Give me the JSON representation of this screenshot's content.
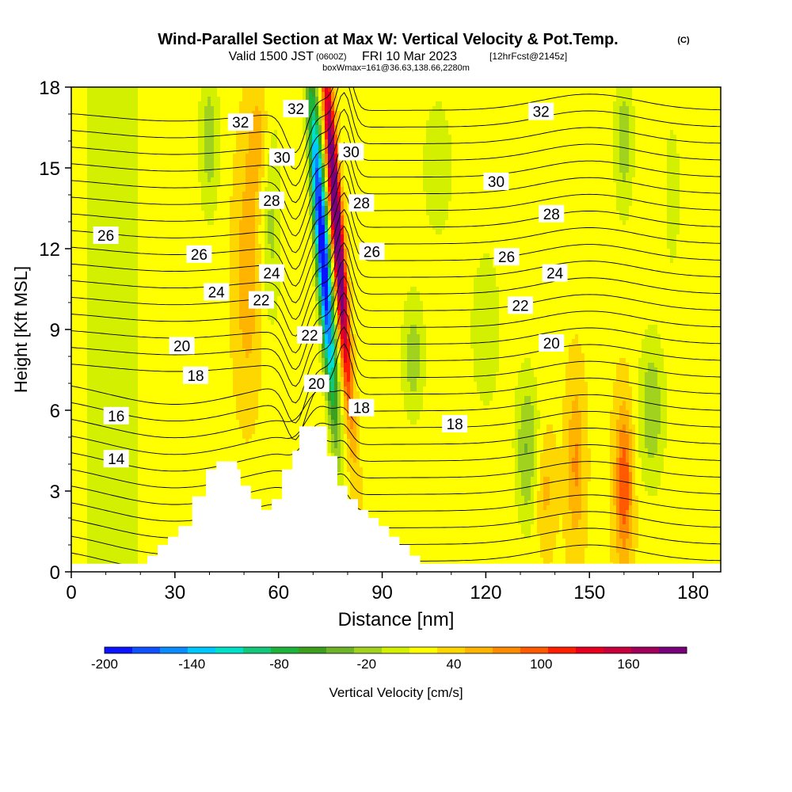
{
  "title": "Wind-Parallel Section at Max W: Vertical Velocity & Pot.Temp.",
  "copyright": "(C)",
  "subtitle_main": "Valid 1500 JST",
  "subtitle_utc": "(0600Z)",
  "subtitle_date": "FRI 10 Mar 2023",
  "subtitle_fcst": "[12hrFcst@2145z]",
  "subtitle_box": "boxWmax=161@36.63,138.66,2280m",
  "chart_data": {
    "type": "contour-section",
    "xlabel": "Distance [nm]",
    "ylabel": "Height [Kft MSL]",
    "xlim": [
      0,
      188
    ],
    "ylim": [
      0,
      18
    ],
    "x_ticks": [
      0,
      30,
      60,
      90,
      120,
      150,
      180
    ],
    "y_ticks": [
      0,
      3,
      6,
      9,
      12,
      15,
      18
    ],
    "colorbar": {
      "label": "Vertical Velocity [cm/s]",
      "tick_labels": [
        "-200",
        "-140",
        "-80",
        "-20",
        "40",
        "100",
        "160"
      ],
      "tick_values": [
        -200,
        -140,
        -80,
        -20,
        40,
        100,
        160
      ],
      "range": [
        -200,
        200
      ],
      "colors": [
        "#0a14ff",
        "#1050ff",
        "#0a8cff",
        "#00c8ff",
        "#00e0c8",
        "#14c87a",
        "#1eb43c",
        "#3ca01e",
        "#6eb428",
        "#a0d21e",
        "#d2f000",
        "#ffff00",
        "#ffd700",
        "#ffb400",
        "#ff8c00",
        "#ff5a00",
        "#ff1e00",
        "#e6001e",
        "#c8003c",
        "#a0005a",
        "#780078"
      ]
    },
    "terrain": [
      [
        0,
        0.3
      ],
      [
        22,
        0.3
      ],
      [
        22,
        0.6
      ],
      [
        25,
        0.6
      ],
      [
        25,
        1.0
      ],
      [
        28,
        1.0
      ],
      [
        28,
        1.3
      ],
      [
        31,
        1.3
      ],
      [
        31,
        1.7
      ],
      [
        35,
        1.7
      ],
      [
        35,
        2.8
      ],
      [
        39,
        2.8
      ],
      [
        39,
        3.8
      ],
      [
        42,
        3.8
      ],
      [
        42,
        4.1
      ],
      [
        48,
        4.1
      ],
      [
        48,
        3.8
      ],
      [
        49,
        3.8
      ],
      [
        49,
        3.2
      ],
      [
        52,
        3.2
      ],
      [
        52,
        2.7
      ],
      [
        55,
        2.7
      ],
      [
        55,
        2.3
      ],
      [
        58,
        2.3
      ],
      [
        58,
        2.7
      ],
      [
        61,
        2.7
      ],
      [
        61,
        3.8
      ],
      [
        64,
        3.8
      ],
      [
        64,
        4.5
      ],
      [
        66,
        4.5
      ],
      [
        66,
        5.4
      ],
      [
        74,
        5.4
      ],
      [
        74,
        4.3
      ],
      [
        77,
        4.3
      ],
      [
        77,
        3.2
      ],
      [
        80,
        3.2
      ],
      [
        80,
        2.7
      ],
      [
        83,
        2.7
      ],
      [
        83,
        2.3
      ],
      [
        86,
        2.3
      ],
      [
        86,
        2.0
      ],
      [
        89,
        2.0
      ],
      [
        89,
        1.7
      ],
      [
        92,
        1.7
      ],
      [
        92,
        1.3
      ],
      [
        95,
        1.3
      ],
      [
        95,
        1.0
      ],
      [
        98,
        1.0
      ],
      [
        98,
        0.6
      ],
      [
        101,
        0.6
      ],
      [
        101,
        0.3
      ],
      [
        188,
        0.3
      ]
    ],
    "theta_labels": [
      {
        "text": "32",
        "x": 49,
        "y": 16.7
      },
      {
        "text": "32",
        "x": 65,
        "y": 17.2
      },
      {
        "text": "32",
        "x": 136,
        "y": 17.1
      },
      {
        "text": "30",
        "x": 61,
        "y": 15.4
      },
      {
        "text": "30",
        "x": 81,
        "y": 15.6
      },
      {
        "text": "30",
        "x": 123,
        "y": 14.5
      },
      {
        "text": "28",
        "x": 58,
        "y": 13.8
      },
      {
        "text": "28",
        "x": 84,
        "y": 13.7
      },
      {
        "text": "28",
        "x": 139,
        "y": 13.3
      },
      {
        "text": "26",
        "x": 10,
        "y": 12.5
      },
      {
        "text": "26",
        "x": 37,
        "y": 11.8
      },
      {
        "text": "26",
        "x": 87,
        "y": 11.9
      },
      {
        "text": "26",
        "x": 126,
        "y": 11.7
      },
      {
        "text": "24",
        "x": 58,
        "y": 11.1
      },
      {
        "text": "24",
        "x": 42,
        "y": 10.4
      },
      {
        "text": "24",
        "x": 140,
        "y": 11.1
      },
      {
        "text": "22",
        "x": 55,
        "y": 10.1
      },
      {
        "text": "22",
        "x": 69,
        "y": 8.8
      },
      {
        "text": "22",
        "x": 130,
        "y": 9.9
      },
      {
        "text": "20",
        "x": 32,
        "y": 8.4
      },
      {
        "text": "20",
        "x": 71,
        "y": 7.0
      },
      {
        "text": "20",
        "x": 139,
        "y": 8.5
      },
      {
        "text": "18",
        "x": 36,
        "y": 7.3
      },
      {
        "text": "18",
        "x": 84,
        "y": 6.1
      },
      {
        "text": "18",
        "x": 111,
        "y": 5.5
      },
      {
        "text": "16",
        "x": 13,
        "y": 5.8
      },
      {
        "text": "14",
        "x": 13,
        "y": 4.2
      }
    ]
  }
}
